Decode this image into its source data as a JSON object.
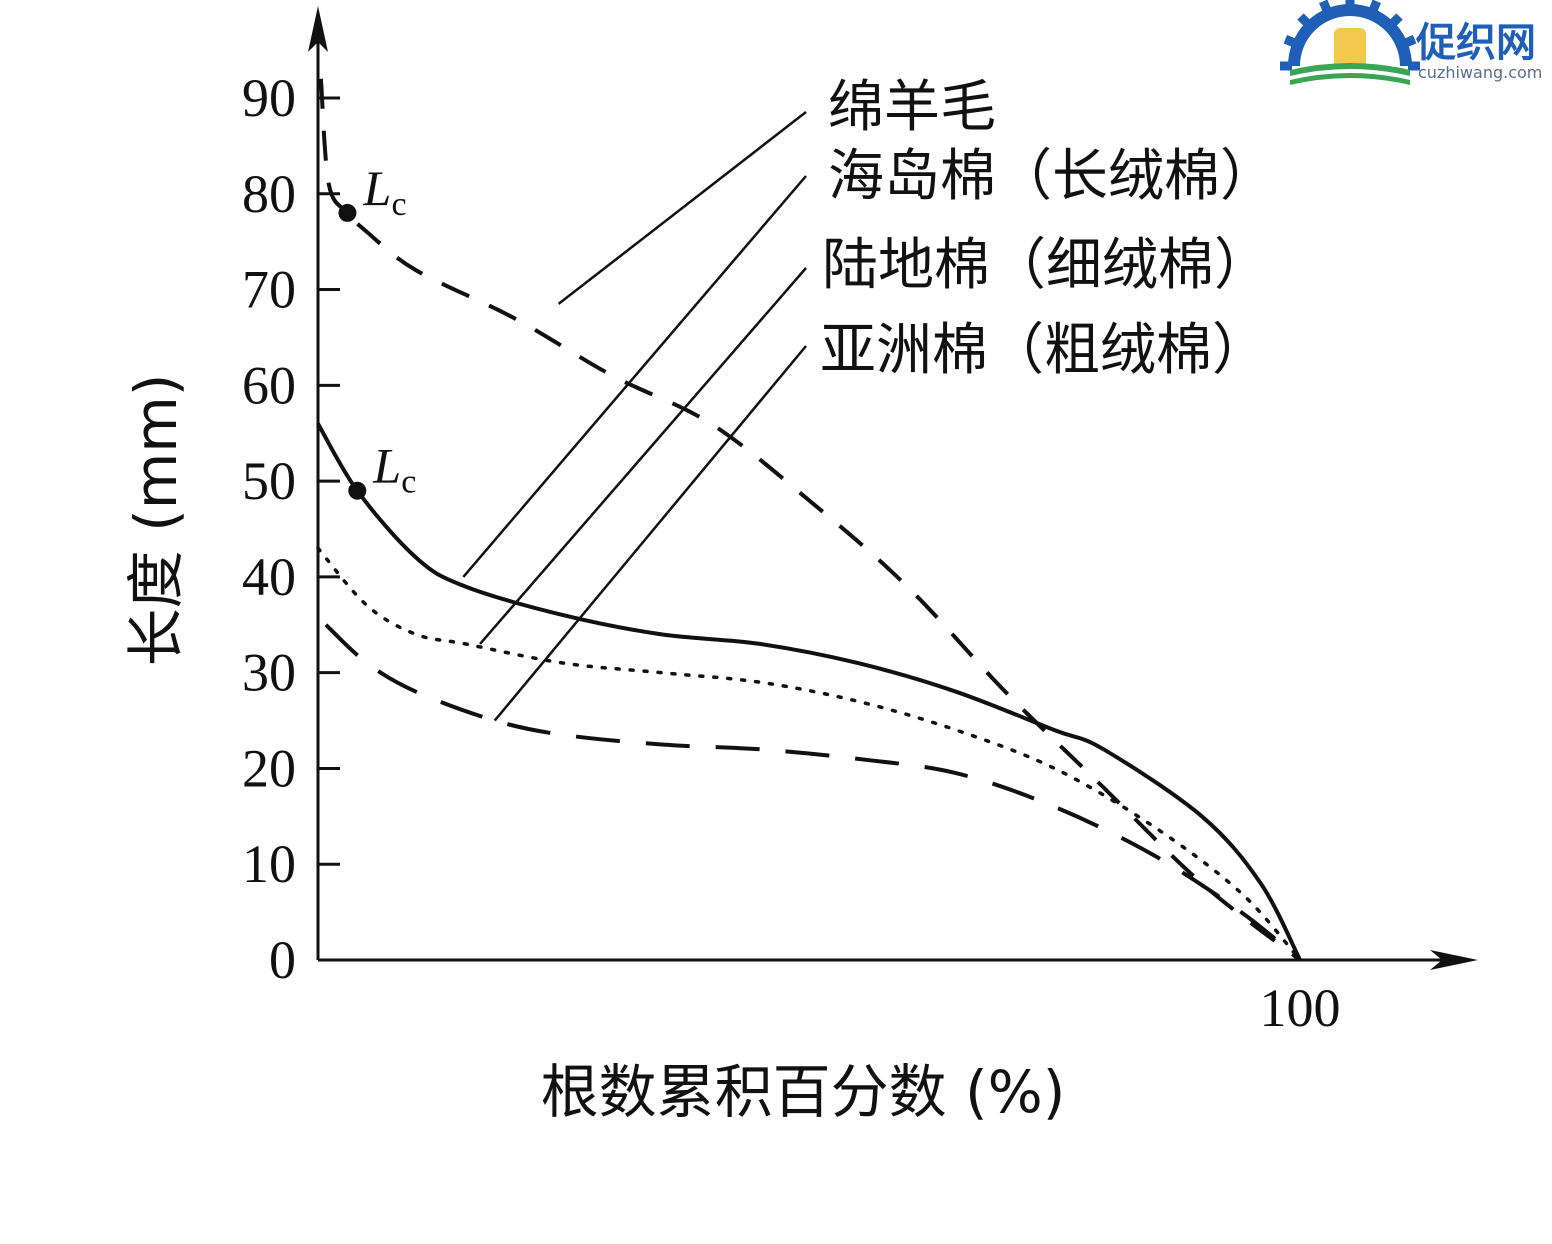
{
  "colors": {
    "axis": "#111111",
    "series": "#111111",
    "watermark_blue": "#1f5fb8",
    "watermark_yellow": "#f2c94c",
    "watermark_green": "#3aa655"
  },
  "watermark": {
    "name": "促织网",
    "domain": "cuzhiwang.com"
  },
  "chart_data": {
    "type": "line",
    "title": "",
    "xlabel": "根数累积百分数 (%)",
    "ylabel": "长度 (mm)",
    "xlim": [
      0,
      100
    ],
    "ylim": [
      0,
      90
    ],
    "x_ticks": [
      100
    ],
    "y_ticks": [
      0,
      10,
      20,
      30,
      40,
      50,
      60,
      70,
      80,
      90
    ],
    "grid": false,
    "series": [
      {
        "name": "绵羊毛",
        "style": "dashed",
        "points": [
          [
            0.3,
            92
          ],
          [
            1.1,
            81
          ],
          [
            3,
            78
          ],
          [
            5,
            76
          ],
          [
            10,
            72
          ],
          [
            20,
            67
          ],
          [
            30,
            61
          ],
          [
            40,
            56
          ],
          [
            50,
            48
          ],
          [
            60,
            39
          ],
          [
            70,
            28
          ],
          [
            80,
            18
          ],
          [
            90,
            8
          ],
          [
            100,
            0
          ]
        ]
      },
      {
        "name": "海岛棉（长绒棉）",
        "style": "solid",
        "points": [
          [
            0,
            56
          ],
          [
            4,
            49
          ],
          [
            10,
            42
          ],
          [
            15,
            39
          ],
          [
            25,
            36
          ],
          [
            35,
            34
          ],
          [
            45,
            33
          ],
          [
            55,
            31
          ],
          [
            65,
            28
          ],
          [
            75,
            24
          ],
          [
            80,
            22
          ],
          [
            90,
            15
          ],
          [
            96,
            8
          ],
          [
            100,
            0
          ]
        ]
      },
      {
        "name": "陆地棉（细绒棉）",
        "style": "dotted",
        "points": [
          [
            0,
            43
          ],
          [
            5,
            37
          ],
          [
            10,
            34
          ],
          [
            15,
            33
          ],
          [
            25,
            31
          ],
          [
            35,
            30
          ],
          [
            45,
            29
          ],
          [
            55,
            27
          ],
          [
            65,
            24
          ],
          [
            75,
            20
          ],
          [
            85,
            14
          ],
          [
            94,
            7
          ],
          [
            100,
            0
          ]
        ]
      },
      {
        "name": "亚洲棉（粗绒棉）",
        "style": "longdash",
        "points": [
          [
            0.8,
            35
          ],
          [
            5,
            31
          ],
          [
            10,
            28
          ],
          [
            18,
            25
          ],
          [
            25,
            23.5
          ],
          [
            35,
            22.5
          ],
          [
            45,
            22
          ],
          [
            55,
            21
          ],
          [
            65,
            19.5
          ],
          [
            75,
            16
          ],
          [
            85,
            11
          ],
          [
            94,
            5
          ],
          [
            100,
            0
          ]
        ]
      }
    ],
    "annotations": [
      {
        "label": "L",
        "subscript": "c",
        "x": 3,
        "y": 78,
        "marker": "dot",
        "series": "绵羊毛"
      },
      {
        "label": "L",
        "subscript": "c",
        "x": 4,
        "y": 49,
        "marker": "dot",
        "series": "海岛棉（长绒棉）"
      }
    ],
    "legend": {
      "placement": "top-right",
      "style": "leader-lines",
      "entries": [
        "绵羊毛",
        "海岛棉（长绒棉）",
        "陆地棉（细绒棉）",
        "亚洲棉（粗绒棉）"
      ]
    }
  }
}
